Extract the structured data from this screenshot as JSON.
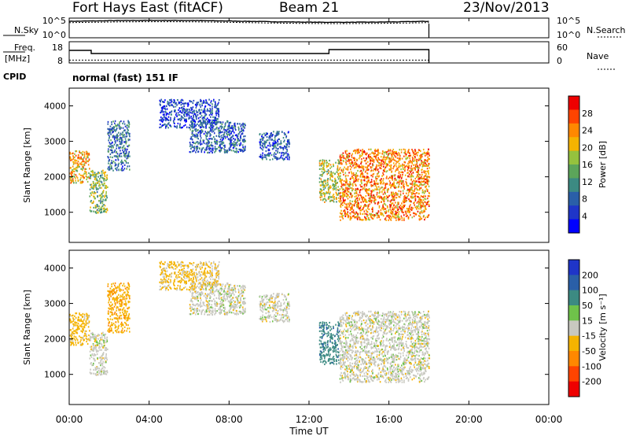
{
  "header": {
    "station": "Fort Hays East (fitACF)",
    "beam": "Beam 21",
    "date": "23/Nov/2013"
  },
  "sky_panel": {
    "left_label": "N.Sky",
    "right_label": "N.Search",
    "left_ticks": [
      "10^5",
      "10^0"
    ],
    "right_ticks": [
      "10^5",
      "10^0"
    ]
  },
  "freq_panel": {
    "left_label_line1": "Freq.",
    "left_label_line2": "[MHz]",
    "right_label": "Nave",
    "left_ticks": [
      "18",
      "8"
    ],
    "right_ticks": [
      "60",
      "0"
    ],
    "cpid_label": "CPID",
    "cpid_text": "normal (fast) 151 IF"
  },
  "power_colorbar": {
    "label": "Power [dB]",
    "ticks": [
      "28",
      "24",
      "20",
      "16",
      "12",
      "8",
      "4"
    ],
    "colors": [
      "#ee0000",
      "#ff4400",
      "#ff8800",
      "#f5b300",
      "#95c23e",
      "#5ca55a",
      "#3c8a82",
      "#2a5fa8",
      "#1f35c8",
      "#0000ff"
    ]
  },
  "velocity_colorbar": {
    "label": "Velocity [m s⁻¹]",
    "ticks": [
      "200",
      "100",
      "50",
      "15",
      "-15",
      "-50",
      "-100",
      "-200"
    ],
    "colors": [
      "#1f35c8",
      "#2a5fa8",
      "#3c8a82",
      "#6fc24a",
      "#c8c8c0",
      "#f5b300",
      "#ff8800",
      "#ff4400",
      "#ee0000"
    ]
  },
  "chart_data": {
    "type": "heatmap",
    "x_ticks": [
      "00:00",
      "04:00",
      "08:00",
      "12:00",
      "16:00",
      "20:00",
      "00:00"
    ],
    "xlabel": "Time UT",
    "ylabel": "Slant Range [km]",
    "x_range_hours": [
      0,
      24
    ],
    "y_range_km": [
      150,
      4500
    ],
    "y_ticks": [
      1000,
      2000,
      3000,
      4000
    ],
    "data_end_hour": 18,
    "freq_mhz": [
      {
        "from": 0,
        "to": 1.1,
        "value": 16
      },
      {
        "from": 1.1,
        "to": 13.0,
        "value": 14
      },
      {
        "from": 13.0,
        "to": 18.0,
        "value": 16.5
      }
    ],
    "nave": [
      {
        "from": 0,
        "to": 18,
        "value": 11
      }
    ],
    "noise_sky_log10": 4.3,
    "noise_search_log10": 4.0,
    "echo_regions": [
      {
        "t": [
          0.0,
          1.0
        ],
        "r": [
          1850,
          2750
        ],
        "power_db": 22,
        "velocity": -30
      },
      {
        "t": [
          1.0,
          1.9
        ],
        "r": [
          1000,
          2200
        ],
        "power_db": 16,
        "velocity": 0
      },
      {
        "t": [
          1.9,
          3.0
        ],
        "r": [
          2200,
          3600
        ],
        "power_db": 10,
        "velocity": -40
      },
      {
        "t": [
          4.5,
          7.5
        ],
        "r": [
          3400,
          4200
        ],
        "power_db": 7,
        "velocity": -20
      },
      {
        "t": [
          6.0,
          8.8
        ],
        "r": [
          2700,
          3600
        ],
        "power_db": 9,
        "velocity": 0
      },
      {
        "t": [
          9.5,
          11.0
        ],
        "r": [
          2500,
          3300
        ],
        "power_db": 8,
        "velocity": 0
      },
      {
        "t": [
          12.5,
          13.5
        ],
        "r": [
          1300,
          2500
        ],
        "power_db": 18,
        "velocity": 60
      },
      {
        "t": [
          13.5,
          18.0
        ],
        "r": [
          800,
          2800
        ],
        "power_db": 24,
        "velocity": 0
      }
    ]
  }
}
